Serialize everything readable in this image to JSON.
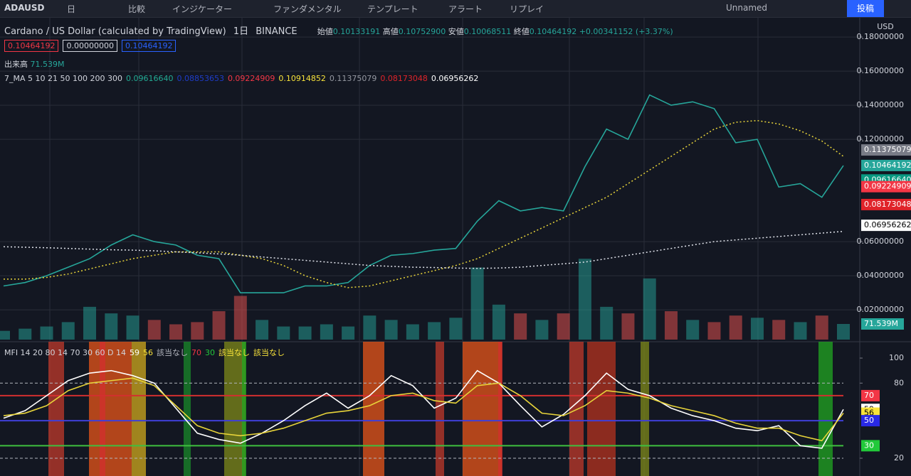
{
  "toolbar": {
    "symbol": "ADAUSD",
    "interval": "日",
    "compare": "比較",
    "indicators": "インジケーター",
    "fundamentals": "ファンダメンタル",
    "templates": "テンプレート",
    "alert": "アラート",
    "replay": "リプレイ",
    "layout_name": "Unnamed",
    "publish": "投稿"
  },
  "legend": {
    "title": "Cardano / US Dollar (calculated by TradingView)",
    "interval": "1日",
    "exchange": "BINANCE",
    "open_label": "始値",
    "open": "0.10133191",
    "high_label": "高値",
    "high": "0.10752900",
    "low_label": "安値",
    "low": "0.10068511",
    "close_label": "終値",
    "close": "0.10464192",
    "change": "+0.00341152 (+3.37%)",
    "boxes": [
      {
        "text": "0.10464192",
        "color": "#f23645"
      },
      {
        "text": "0.00000000",
        "color": "#d1d4dc"
      },
      {
        "text": "0.10464192",
        "color": "#2962ff"
      }
    ],
    "volume_label": "出来高",
    "volume": "71.539M",
    "ma_label": "7_MA 5 10 21 50 100 200 300",
    "ma_values": [
      {
        "text": "0.09616640",
        "color": "#22ab94"
      },
      {
        "text": "0.08853653",
        "color": "#1e3cc8"
      },
      {
        "text": "0.09224909",
        "color": "#f23645"
      },
      {
        "text": "0.10914852",
        "color": "#f7e23a"
      },
      {
        "text": "0.11375079",
        "color": "#9598a1"
      },
      {
        "text": "0.08173048",
        "color": "#e0242a"
      },
      {
        "text": "0.06956262",
        "color": "#ffffff"
      }
    ]
  },
  "price_chart": {
    "type": "line",
    "unit": "USD",
    "ylim": [
      0.0017,
      0.1917
    ],
    "yticks": [
      {
        "value": 0.18,
        "label": "0.18000000"
      },
      {
        "value": 0.16,
        "label": "0.16000000"
      },
      {
        "value": 0.14,
        "label": "0.14000000"
      },
      {
        "value": 0.12,
        "label": "0.12000000"
      },
      {
        "value": 0.06,
        "label": "0.06000000"
      },
      {
        "value": 0.04,
        "label": "0.04000000"
      },
      {
        "value": 0.02,
        "label": "0.02000000"
      }
    ],
    "grid": true,
    "series": [
      {
        "color": "#26a69a",
        "values": [
          0.034,
          0.036,
          0.04,
          0.045,
          0.05,
          0.058,
          0.064,
          0.06,
          0.058,
          0.052,
          0.05,
          0.03,
          0.03,
          0.03,
          0.034,
          0.034,
          0.036,
          0.046,
          0.052,
          0.053,
          0.055,
          0.056,
          0.072,
          0.084,
          0.078,
          0.08,
          0.078,
          0.104,
          0.126,
          0.12,
          0.146,
          0.14,
          0.142,
          0.138,
          0.118,
          0.12,
          0.092,
          0.094,
          0.086,
          0.1046
        ]
      },
      {
        "color": "#e8d43a",
        "dashed": true,
        "values": [
          0.038,
          0.038,
          0.039,
          0.041,
          0.044,
          0.047,
          0.05,
          0.052,
          0.054,
          0.054,
          0.054,
          0.052,
          0.05,
          0.046,
          0.04,
          0.036,
          0.033,
          0.034,
          0.037,
          0.04,
          0.043,
          0.046,
          0.05,
          0.056,
          0.062,
          0.068,
          0.074,
          0.08,
          0.086,
          0.094,
          0.102,
          0.11,
          0.118,
          0.126,
          0.13,
          0.131,
          0.129,
          0.125,
          0.119,
          0.11
        ]
      },
      {
        "color": "#e0e3eb",
        "dashed": true,
        "values": [
          0.057,
          0.0567,
          0.0564,
          0.056,
          0.0556,
          0.0552,
          0.055,
          0.0546,
          0.054,
          0.0534,
          0.0528,
          0.052,
          0.051,
          0.05,
          0.049,
          0.048,
          0.047,
          0.046,
          0.0455,
          0.045,
          0.0448,
          0.0445,
          0.0443,
          0.0445,
          0.045,
          0.046,
          0.047,
          0.048,
          0.05,
          0.052,
          0.054,
          0.056,
          0.058,
          0.06,
          0.061,
          0.062,
          0.063,
          0.064,
          0.065,
          0.066
        ]
      }
    ],
    "volume": {
      "ylim": [
        0,
        400
      ],
      "values": [
        40,
        50,
        60,
        80,
        150,
        120,
        110,
        90,
        70,
        80,
        130,
        200,
        90,
        60,
        60,
        70,
        60,
        110,
        90,
        70,
        80,
        100,
        330,
        160,
        120,
        90,
        120,
        370,
        150,
        120,
        280,
        130,
        90,
        80,
        110,
        100,
        90,
        80,
        110,
        71.539
      ]
    },
    "tags": [
      {
        "value": 0.11375079,
        "label": "0.11375079",
        "color": "#787b86"
      },
      {
        "value": 0.10464192,
        "label": "0.10464192",
        "color": "#26a69a"
      },
      {
        "value": 0.0961664,
        "label": "0.09616640",
        "color": "#089981"
      },
      {
        "value": 0.09224909,
        "label": "0.09224909",
        "color": "#f23645"
      },
      {
        "value": 0.08173048,
        "label": "0.08173048",
        "color": "#e0242a"
      },
      {
        "value": 0.06956262,
        "label": "0.06956262",
        "color": "#ffffff"
      }
    ],
    "volume_tag": {
      "value": 71.539,
      "label": "71.539M",
      "color": "#26a69a"
    }
  },
  "mfi": {
    "type": "line",
    "legend": "MFI 14 20 80 14 70 30 60 D 14",
    "legend_items": [
      {
        "text": "59",
        "color": "#ffffff"
      },
      {
        "text": "56",
        "color": "#f7e23a"
      },
      {
        "text": "該当なし",
        "color": "#b2b5be"
      },
      {
        "text": "70",
        "color": "#f23645"
      },
      {
        "text": "30",
        "color": "#22c93a"
      },
      {
        "text": "該当なし",
        "color": "#f7e23a"
      },
      {
        "text": "該当なし",
        "color": "#f7e23a"
      }
    ],
    "ylim": [
      5.8,
      112.5
    ],
    "yticks": [
      20,
      80,
      100
    ],
    "levels": [
      {
        "value": 80,
        "color": "#b2b5be",
        "dashed": true
      },
      {
        "value": 70,
        "color": "#d32f2f"
      },
      {
        "value": 50,
        "color": "#3f3fd8"
      },
      {
        "value": 30,
        "color": "#3fbf3f"
      },
      {
        "value": 20,
        "color": "#b2b5be",
        "dashed": true
      }
    ],
    "series": [
      {
        "color": "#ffffff",
        "values": [
          52,
          58,
          70,
          82,
          88,
          90,
          86,
          80,
          60,
          40,
          35,
          32,
          40,
          50,
          62,
          72,
          60,
          70,
          86,
          78,
          60,
          68,
          90,
          80,
          62,
          45,
          55,
          70,
          88,
          75,
          70,
          60,
          54,
          50,
          44,
          42,
          46,
          30,
          28,
          59
        ]
      },
      {
        "color": "#e8d43a",
        "values": [
          54,
          56,
          62,
          74,
          80,
          82,
          84,
          78,
          62,
          46,
          40,
          38,
          40,
          44,
          50,
          56,
          58,
          62,
          70,
          72,
          66,
          64,
          78,
          80,
          70,
          56,
          54,
          62,
          74,
          72,
          68,
          62,
          58,
          54,
          48,
          44,
          44,
          38,
          34,
          56
        ]
      }
    ],
    "tags": [
      {
        "value": 70,
        "color": "#f23645"
      },
      {
        "value": 59,
        "color": "#ffffff"
      },
      {
        "value": 56,
        "color": "#f7e23a"
      },
      {
        "value": 50,
        "color": "#2929e6"
      },
      {
        "value": 30,
        "color": "#22c93a"
      }
    ]
  }
}
